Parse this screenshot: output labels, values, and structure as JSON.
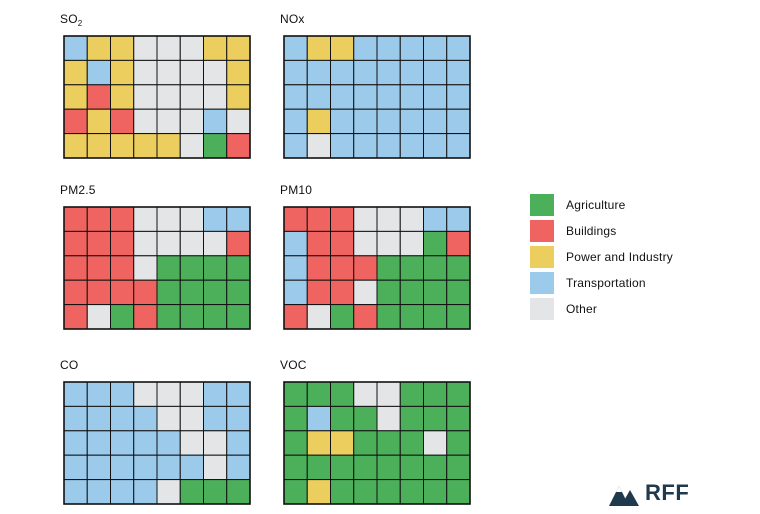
{
  "colors": {
    "Agriculture": "#4caf5a",
    "Buildings": "#ef6360",
    "Power and Industry": "#ebce5e",
    "Transportation": "#9ccaea",
    "Other": "#e3e5e7",
    "outline": "#111111",
    "logo": "#1f3a4d"
  },
  "legend": [
    {
      "category": "Agriculture",
      "label": "Agriculture"
    },
    {
      "category": "Buildings",
      "label": "Buildings"
    },
    {
      "category": "Power and Industry",
      "label": "Power and Industry"
    },
    {
      "category": "Transportation",
      "label": "Transportation"
    },
    {
      "category": "Other",
      "label": "Other"
    }
  ],
  "panels": [
    {
      "id": "so2",
      "title_main": "SO",
      "title_sub": "2",
      "counties": [
        "Transportation",
        "Power and Industry",
        "Power and Industry",
        "Other",
        "Other",
        "Other",
        "Power and Industry",
        "Power and Industry",
        "Power and Industry",
        "Transportation",
        "Power and Industry",
        "Other",
        "Other",
        "Other",
        "Other",
        "Power and Industry",
        "Power and Industry",
        "Buildings",
        "Power and Industry",
        "Other",
        "Other",
        "Other",
        "Other",
        "Power and Industry",
        "Buildings",
        "Power and Industry",
        "Buildings",
        "Other",
        "Other",
        "Other",
        "Transportation",
        "Other",
        "Power and Industry",
        "Power and Industry",
        "Power and Industry",
        "Power and Industry",
        "Power and Industry",
        "Other",
        "Agriculture",
        "Buildings"
      ]
    },
    {
      "id": "nox",
      "title_main": "NOx",
      "title_sub": "",
      "counties": [
        "Transportation",
        "Power and Industry",
        "Power and Industry",
        "Transportation",
        "Transportation",
        "Transportation",
        "Transportation",
        "Transportation",
        "Transportation",
        "Transportation",
        "Transportation",
        "Transportation",
        "Transportation",
        "Transportation",
        "Transportation",
        "Transportation",
        "Transportation",
        "Transportation",
        "Transportation",
        "Transportation",
        "Transportation",
        "Transportation",
        "Transportation",
        "Transportation",
        "Transportation",
        "Power and Industry",
        "Transportation",
        "Transportation",
        "Transportation",
        "Transportation",
        "Transportation",
        "Transportation",
        "Transportation",
        "Other",
        "Transportation",
        "Transportation",
        "Transportation",
        "Transportation",
        "Transportation",
        "Transportation"
      ]
    },
    {
      "id": "pm25",
      "title_main": "PM2.5",
      "title_sub": "",
      "counties": [
        "Buildings",
        "Buildings",
        "Buildings",
        "Other",
        "Other",
        "Other",
        "Transportation",
        "Transportation",
        "Buildings",
        "Buildings",
        "Buildings",
        "Other",
        "Other",
        "Other",
        "Other",
        "Buildings",
        "Buildings",
        "Buildings",
        "Buildings",
        "Other",
        "Agriculture",
        "Agriculture",
        "Agriculture",
        "Agriculture",
        "Buildings",
        "Buildings",
        "Buildings",
        "Buildings",
        "Agriculture",
        "Agriculture",
        "Agriculture",
        "Agriculture",
        "Buildings",
        "Other",
        "Agriculture",
        "Buildings",
        "Agriculture",
        "Agriculture",
        "Agriculture",
        "Agriculture"
      ]
    },
    {
      "id": "pm10",
      "title_main": "PM10",
      "title_sub": "",
      "counties": [
        "Buildings",
        "Buildings",
        "Buildings",
        "Other",
        "Other",
        "Other",
        "Transportation",
        "Transportation",
        "Transportation",
        "Buildings",
        "Buildings",
        "Other",
        "Other",
        "Other",
        "Agriculture",
        "Buildings",
        "Transportation",
        "Buildings",
        "Buildings",
        "Buildings",
        "Agriculture",
        "Agriculture",
        "Agriculture",
        "Agriculture",
        "Transportation",
        "Buildings",
        "Buildings",
        "Other",
        "Agriculture",
        "Agriculture",
        "Agriculture",
        "Agriculture",
        "Buildings",
        "Other",
        "Agriculture",
        "Buildings",
        "Agriculture",
        "Agriculture",
        "Agriculture",
        "Agriculture"
      ]
    },
    {
      "id": "co",
      "title_main": "CO",
      "title_sub": "",
      "counties": [
        "Transportation",
        "Transportation",
        "Transportation",
        "Other",
        "Other",
        "Other",
        "Transportation",
        "Transportation",
        "Transportation",
        "Transportation",
        "Transportation",
        "Transportation",
        "Other",
        "Other",
        "Transportation",
        "Transportation",
        "Transportation",
        "Transportation",
        "Transportation",
        "Transportation",
        "Transportation",
        "Other",
        "Other",
        "Transportation",
        "Transportation",
        "Transportation",
        "Transportation",
        "Transportation",
        "Transportation",
        "Transportation",
        "Other",
        "Transportation",
        "Transportation",
        "Transportation",
        "Transportation",
        "Transportation",
        "Other",
        "Agriculture",
        "Agriculture",
        "Agriculture"
      ]
    },
    {
      "id": "voc",
      "title_main": "VOC",
      "title_sub": "",
      "counties": [
        "Agriculture",
        "Agriculture",
        "Agriculture",
        "Other",
        "Other",
        "Agriculture",
        "Agriculture",
        "Agriculture",
        "Agriculture",
        "Transportation",
        "Agriculture",
        "Agriculture",
        "Other",
        "Agriculture",
        "Agriculture",
        "Agriculture",
        "Agriculture",
        "Power and Industry",
        "Power and Industry",
        "Agriculture",
        "Agriculture",
        "Agriculture",
        "Other",
        "Agriculture",
        "Agriculture",
        "Agriculture",
        "Agriculture",
        "Agriculture",
        "Agriculture",
        "Agriculture",
        "Agriculture",
        "Agriculture",
        "Agriculture",
        "Power and Industry",
        "Agriculture",
        "Agriculture",
        "Agriculture",
        "Agriculture",
        "Agriculture",
        "Agriculture"
      ]
    }
  ],
  "logo": {
    "text": "RFF"
  }
}
